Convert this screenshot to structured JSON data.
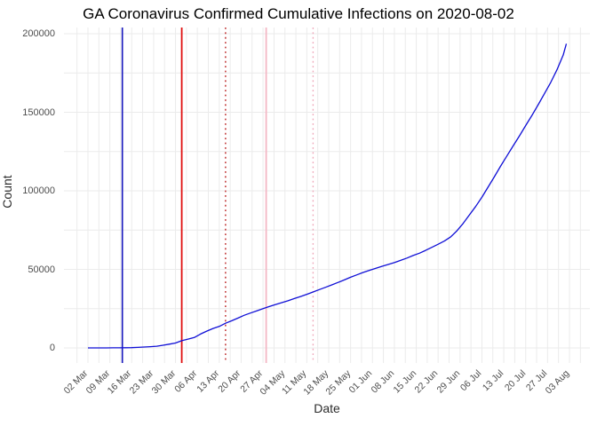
{
  "title": "GA Coronavirus Confirmed Cumulative Infections on 2020-08-02",
  "colors": {
    "background": "#ffffff",
    "gridline": "#ebebeb",
    "axis_text": "#4d4d4d",
    "axis_title": "#2b2b2b",
    "title_text": "#000000",
    "curve_blue": "#0f0fd6",
    "vline_blue": "#1818be",
    "vline_red": "#e01010",
    "vline_red_dotted": "#c23b3b",
    "vline_pink": "#f3b7c4",
    "vline_pink_dotted": "#efa9bb"
  },
  "chart_data": {
    "type": "line",
    "title": "GA Coronavirus Confirmed Cumulative Infections on 2020-08-02",
    "xlabel": "Date",
    "ylabel": "Count",
    "ylim": [
      0,
      200000
    ],
    "grid": true,
    "legend": "none",
    "x_ticks": [
      {
        "label": "02 Mar",
        "date": "2020-03-02"
      },
      {
        "label": "09 Mar",
        "date": "2020-03-09"
      },
      {
        "label": "16 Mar",
        "date": "2020-03-16"
      },
      {
        "label": "23 Mar",
        "date": "2020-03-23"
      },
      {
        "label": "30 Mar",
        "date": "2020-03-30"
      },
      {
        "label": "06 Apr",
        "date": "2020-04-06"
      },
      {
        "label": "13 Apr",
        "date": "2020-04-13"
      },
      {
        "label": "20 Apr",
        "date": "2020-04-20"
      },
      {
        "label": "27 Apr",
        "date": "2020-04-27"
      },
      {
        "label": "04 May",
        "date": "2020-05-04"
      },
      {
        "label": "11 May",
        "date": "2020-05-11"
      },
      {
        "label": "18 May",
        "date": "2020-05-18"
      },
      {
        "label": "25 May",
        "date": "2020-05-25"
      },
      {
        "label": "01 Jun",
        "date": "2020-06-01"
      },
      {
        "label": "08 Jun",
        "date": "2020-06-08"
      },
      {
        "label": "15 Jun",
        "date": "2020-06-15"
      },
      {
        "label": "22 Jun",
        "date": "2020-06-22"
      },
      {
        "label": "29 Jun",
        "date": "2020-06-29"
      },
      {
        "label": "06 Jul",
        "date": "2020-07-06"
      },
      {
        "label": "13 Jul",
        "date": "2020-07-13"
      },
      {
        "label": "20 Jul",
        "date": "2020-07-20"
      },
      {
        "label": "27 Jul",
        "date": "2020-07-27"
      },
      {
        "label": "03 Aug",
        "date": "2020-08-03"
      }
    ],
    "y_ticks": [
      {
        "label": "0",
        "value": 0
      },
      {
        "label": "50000",
        "value": 50000
      },
      {
        "label": "100000",
        "value": 100000
      },
      {
        "label": "150000",
        "value": 150000
      },
      {
        "label": "200000",
        "value": 200000
      }
    ],
    "vlines": [
      {
        "date": "2020-03-13",
        "color": "#1818be",
        "style": "solid",
        "width": 1.6
      },
      {
        "date": "2020-04-01",
        "color": "#e01010",
        "style": "solid",
        "width": 1.8
      },
      {
        "date": "2020-04-15",
        "color": "#c23b3b",
        "style": "dotted",
        "width": 1.6
      },
      {
        "date": "2020-04-28",
        "color": "#f3b7c4",
        "style": "solid",
        "width": 1.8
      },
      {
        "date": "2020-05-13",
        "color": "#efa9bb",
        "style": "dotted",
        "width": 1.4
      }
    ],
    "series": [
      {
        "name": "cumulative-confirmed-infections",
        "color": "#0f0fd6",
        "points": [
          [
            "2020-03-02",
            2
          ],
          [
            "2020-03-04",
            6
          ],
          [
            "2020-03-06",
            15
          ],
          [
            "2020-03-08",
            25
          ],
          [
            "2020-03-10",
            35
          ],
          [
            "2020-03-12",
            60
          ],
          [
            "2020-03-14",
            100
          ],
          [
            "2020-03-16",
            180
          ],
          [
            "2020-03-18",
            330
          ],
          [
            "2020-03-20",
            550
          ],
          [
            "2020-03-22",
            800
          ],
          [
            "2020-03-24",
            1100
          ],
          [
            "2020-03-26",
            1700
          ],
          [
            "2020-03-28",
            2400
          ],
          [
            "2020-03-30",
            3100
          ],
          [
            "2020-04-01",
            4600
          ],
          [
            "2020-04-03",
            5600
          ],
          [
            "2020-04-05",
            6600
          ],
          [
            "2020-04-07",
            8800
          ],
          [
            "2020-04-09",
            10700
          ],
          [
            "2020-04-11",
            12400
          ],
          [
            "2020-04-13",
            13700
          ],
          [
            "2020-04-15",
            15700
          ],
          [
            "2020-04-17",
            17300
          ],
          [
            "2020-04-19",
            19000
          ],
          [
            "2020-04-21",
            20800
          ],
          [
            "2020-04-23",
            22200
          ],
          [
            "2020-04-25",
            23600
          ],
          [
            "2020-04-27",
            25000
          ],
          [
            "2020-04-29",
            26300
          ],
          [
            "2020-05-01",
            27600
          ],
          [
            "2020-05-03",
            28800
          ],
          [
            "2020-05-05",
            30000
          ],
          [
            "2020-05-07",
            31400
          ],
          [
            "2020-05-09",
            32700
          ],
          [
            "2020-05-11",
            34100
          ],
          [
            "2020-05-13",
            35600
          ],
          [
            "2020-05-15",
            37100
          ],
          [
            "2020-05-17",
            38600
          ],
          [
            "2020-05-19",
            40100
          ],
          [
            "2020-05-21",
            41700
          ],
          [
            "2020-05-23",
            43300
          ],
          [
            "2020-05-25",
            45000
          ],
          [
            "2020-05-27",
            46500
          ],
          [
            "2020-05-29",
            48000
          ],
          [
            "2020-05-31",
            49400
          ],
          [
            "2020-06-02",
            50600
          ],
          [
            "2020-06-04",
            51900
          ],
          [
            "2020-06-06",
            53100
          ],
          [
            "2020-06-08",
            54300
          ],
          [
            "2020-06-10",
            55700
          ],
          [
            "2020-06-12",
            57200
          ],
          [
            "2020-06-14",
            58800
          ],
          [
            "2020-06-16",
            60300
          ],
          [
            "2020-06-18",
            62100
          ],
          [
            "2020-06-20",
            64000
          ],
          [
            "2020-06-22",
            66000
          ],
          [
            "2020-06-24",
            68000
          ],
          [
            "2020-06-26",
            70700
          ],
          [
            "2020-06-28",
            74500
          ],
          [
            "2020-06-30",
            79200
          ],
          [
            "2020-07-02",
            84700
          ],
          [
            "2020-07-04",
            90000
          ],
          [
            "2020-07-06",
            96000
          ],
          [
            "2020-07-08",
            102500
          ],
          [
            "2020-07-10",
            109000
          ],
          [
            "2020-07-12",
            115800
          ],
          [
            "2020-07-14",
            122200
          ],
          [
            "2020-07-16",
            128600
          ],
          [
            "2020-07-18",
            135000
          ],
          [
            "2020-07-20",
            141500
          ],
          [
            "2020-07-22",
            148000
          ],
          [
            "2020-07-24",
            154800
          ],
          [
            "2020-07-26",
            161800
          ],
          [
            "2020-07-28",
            169000
          ],
          [
            "2020-07-30",
            177000
          ],
          [
            "2020-08-01",
            186500
          ],
          [
            "2020-08-02",
            193600
          ]
        ]
      }
    ]
  }
}
